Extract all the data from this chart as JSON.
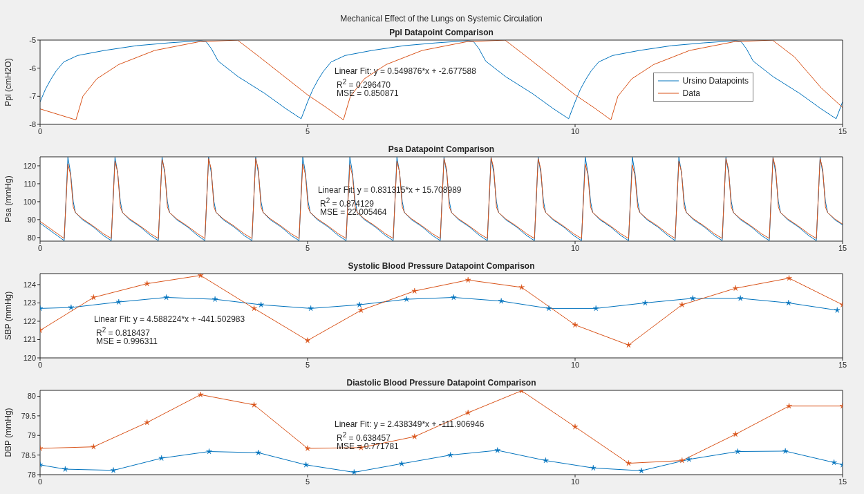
{
  "chart_data": [
    {
      "type": "line",
      "title": "Mechanical Effect of the Lungs on Systemic Circulation",
      "subtitle": "Ppl Datapoint Comparison",
      "ylabel": "Ppl (cmH2O)",
      "xlim": [
        0,
        15
      ],
      "xticks": [
        0,
        5,
        10,
        15
      ],
      "ylim": [
        -8,
        -5
      ],
      "yticks": [
        -8,
        -7,
        -6,
        -5
      ],
      "legend": "right",
      "series": [
        {
          "name": "Ursino Datapoints",
          "color": "#0072bd",
          "x": [
            0,
            0.1,
            0.2,
            0.3,
            0.44,
            0.7,
            1.2,
            1.8,
            2.4,
            3,
            3.1,
            3.2,
            3.33,
            3.7,
            4.2,
            4.6,
            4.88,
            5,
            5.1,
            5.2,
            5.3,
            5.44,
            5.7,
            6.2,
            6.8,
            7.4,
            8,
            8.1,
            8.2,
            8.33,
            8.7,
            9.2,
            9.6,
            9.88,
            10,
            10.1,
            10.2,
            10.3,
            10.44,
            10.7,
            11.2,
            11.8,
            12.4,
            13,
            13.1,
            13.2,
            13.33,
            13.7,
            14.2,
            14.6,
            14.88,
            15
          ],
          "values": [
            -7.2,
            -6.75,
            -6.4,
            -6.1,
            -5.78,
            -5.55,
            -5.37,
            -5.2,
            -5.1,
            -5.02,
            -5.05,
            -5.3,
            -5.75,
            -6.3,
            -6.9,
            -7.45,
            -7.8,
            -7.2,
            -6.75,
            -6.4,
            -6.1,
            -5.78,
            -5.55,
            -5.37,
            -5.2,
            -5.1,
            -5.02,
            -5.05,
            -5.3,
            -5.75,
            -6.3,
            -6.9,
            -7.45,
            -7.8,
            -7.2,
            -6.75,
            -6.4,
            -6.1,
            -5.78,
            -5.55,
            -5.37,
            -5.2,
            -5.1,
            -5.02,
            -5.05,
            -5.3,
            -5.75,
            -6.3,
            -6.9,
            -7.45,
            -7.8,
            -7.2
          ]
        },
        {
          "name": "Data",
          "color": "#d95319",
          "x": [
            0,
            0.67,
            0.8,
            1.06,
            1.47,
            2.14,
            2.97,
            3.69,
            4.1,
            4.6,
            5,
            5.35,
            5.67,
            5.8,
            6.06,
            6.47,
            7.14,
            7.97,
            8.69,
            9.1,
            9.6,
            10,
            10.35,
            10.67,
            10.8,
            11.06,
            11.47,
            12.14,
            12.97,
            13.69,
            14.1,
            14.6,
            15
          ],
          "values": [
            -7.45,
            -7.84,
            -7,
            -6.38,
            -5.87,
            -5.37,
            -5.06,
            -5,
            -5.6,
            -6.35,
            -6.95,
            -7.4,
            -7.84,
            -7,
            -6.38,
            -5.87,
            -5.37,
            -5.06,
            -5,
            -5.6,
            -6.35,
            -6.95,
            -7.4,
            -7.84,
            -7,
            -6.38,
            -5.87,
            -5.37,
            -5.06,
            -5,
            -5.6,
            -6.7,
            -7.4
          ]
        }
      ],
      "annotations": [
        "Linear Fit: y = 0.549876*x + -2.677588",
        "R$^{2}$ = 0.296470",
        "MSE = 0.850871"
      ]
    },
    {
      "type": "line",
      "title": "Psa Datapoint Comparison",
      "ylabel": "Psa (mmHg)",
      "xlim": [
        0,
        15
      ],
      "xticks": [
        0,
        5,
        10,
        15
      ],
      "ylim": [
        78,
        125
      ],
      "yticks": [
        80,
        90,
        100,
        110,
        120
      ],
      "x": [
        0,
        0.45,
        0.52,
        0.57,
        0.62,
        0.66,
        0.79,
        0.99,
        1.19,
        1.33,
        1.4,
        1.45,
        1.5,
        1.54,
        1.67,
        1.87,
        2.07,
        2.21,
        2.28,
        2.33,
        2.38,
        2.42,
        2.55,
        2.75,
        2.95,
        3.08,
        3.15,
        3.2,
        3.25,
        3.29,
        3.42,
        3.62,
        3.82,
        3.96,
        4.03,
        4.08,
        4.13,
        4.17,
        4.3,
        4.5,
        4.7,
        4.84,
        4.91,
        4.96,
        5.01,
        5.05,
        5.18,
        5.38,
        5.58,
        5.72,
        5.79,
        5.84,
        5.89,
        5.93,
        6.06,
        6.26,
        6.46,
        6.6,
        6.67,
        6.72,
        6.77,
        6.81,
        6.94,
        7.14,
        7.34,
        7.48,
        7.55,
        7.6,
        7.65,
        7.69,
        7.82,
        8.02,
        8.22,
        8.36,
        8.43,
        8.48,
        8.53,
        8.57,
        8.7,
        8.9,
        9.1,
        9.24,
        9.31,
        9.36,
        9.41,
        9.45,
        9.58,
        9.78,
        9.98,
        10.12,
        10.19,
        10.24,
        10.29,
        10.33,
        10.46,
        10.66,
        10.86,
        11,
        11.07,
        11.12,
        11.17,
        11.21,
        11.34,
        11.54,
        11.74,
        11.87,
        11.94,
        11.99,
        12.04,
        12.08,
        12.21,
        12.41,
        12.61,
        12.75,
        12.82,
        12.87,
        12.92,
        12.96,
        13.09,
        13.29,
        13.49,
        13.63,
        13.7,
        13.75,
        13.8,
        13.84,
        13.97,
        14.17,
        14.37,
        14.51,
        14.58,
        14.63,
        14.68,
        14.72,
        14.85,
        15
      ],
      "series": [
        {
          "color": "#0072bd",
          "values": [
            88,
            78.3,
            124.8,
            116,
            100,
            94,
            90,
            86,
            81,
            78.3,
            124.8,
            116,
            100,
            94,
            90,
            86,
            81,
            78.3,
            124.8,
            116,
            100,
            94,
            90,
            86,
            81,
            78.3,
            124.8,
            116,
            100,
            94,
            90,
            86,
            81,
            78.3,
            124.8,
            116,
            100,
            94,
            90,
            86,
            81,
            78.3,
            124.8,
            116,
            100,
            94,
            90,
            86,
            81,
            78.3,
            124.8,
            116,
            100,
            94,
            90,
            86,
            81,
            78.3,
            124.8,
            116,
            100,
            94,
            90,
            86,
            81,
            78.3,
            124.8,
            116,
            100,
            94,
            90,
            86,
            81,
            78.3,
            124.8,
            116,
            100,
            94,
            90,
            86,
            81,
            78.3,
            124.8,
            116,
            100,
            94,
            90,
            86,
            81,
            78.3,
            124.8,
            116,
            100,
            94,
            90,
            86,
            81,
            78.3,
            124.8,
            116,
            100,
            94,
            90,
            86,
            81,
            78.3,
            124.8,
            116,
            100,
            94,
            90,
            86,
            81,
            78.3,
            124.8,
            116,
            100,
            94,
            90,
            86,
            81,
            78.3,
            124.8,
            116,
            100,
            94,
            90,
            86,
            81,
            78.3,
            124.8,
            116,
            100,
            94,
            90,
            87
          ]
        },
        {
          "color": "#d95319",
          "values": [
            89,
            79.5,
            121,
            115,
            97,
            94,
            90.5,
            86.5,
            82,
            79.5,
            122.5,
            116.5,
            97,
            94,
            90.5,
            86.5,
            82,
            79.5,
            123.5,
            117.5,
            97,
            94,
            90.5,
            86.5,
            82,
            79.5,
            124,
            118,
            97,
            94,
            90.5,
            86.5,
            82,
            79.5,
            124,
            118,
            97,
            94,
            90.5,
            86.5,
            82,
            79.5,
            121,
            115,
            97,
            94,
            90.5,
            86.5,
            82,
            79.5,
            120.5,
            114.5,
            97,
            94,
            90.5,
            86.5,
            82,
            79.5,
            122.5,
            116.5,
            97,
            94,
            90.5,
            86.5,
            82,
            79.5,
            124,
            118,
            97,
            94,
            90.5,
            86.5,
            82,
            79.5,
            124.5,
            118.5,
            97,
            94,
            90.5,
            86.5,
            82,
            79.5,
            124,
            118,
            97,
            94,
            90.5,
            86.5,
            82,
            79.5,
            121,
            115,
            97,
            94,
            90.5,
            86.5,
            82,
            79.5,
            120.5,
            114.5,
            97,
            94,
            90.5,
            86.5,
            82,
            79.5,
            122.5,
            116.5,
            97,
            94,
            90.5,
            86.5,
            82,
            79.5,
            124,
            118,
            97,
            94,
            90.5,
            86.5,
            82,
            79.5,
            124.5,
            118.5,
            97,
            94,
            90.5,
            86.5,
            82,
            79.5,
            124,
            118,
            97,
            94,
            90.5,
            87.5
          ]
        }
      ],
      "annotations": [
        "Linear Fit:  y = 0.831315*x + 15.708989",
        "R$^{2}$ = 0.874129",
        "MSE = 22.005464"
      ]
    },
    {
      "type": "line",
      "title": "Systolic Blood Pressure Datapoint Comparison",
      "ylabel": "SBP (mmHg)",
      "xlim": [
        0,
        15
      ],
      "xticks": [
        0,
        5,
        10,
        15
      ],
      "ylim": [
        120,
        124.6
      ],
      "yticks": [
        120,
        121,
        122,
        123,
        124
      ],
      "marker": "star",
      "series": [
        {
          "color": "#0072bd",
          "x": [
            0,
            0.58,
            1.47,
            2.36,
            3.27,
            4.13,
            5.06,
            5.97,
            6.85,
            7.73,
            8.62,
            9.51,
            10.39,
            11.31,
            12.2,
            13.09,
            13.99,
            14.9
          ],
          "values": [
            122.7,
            122.75,
            123.05,
            123.3,
            123.2,
            122.9,
            122.7,
            122.9,
            123.2,
            123.3,
            123.1,
            122.7,
            122.7,
            123,
            123.25,
            123.25,
            123,
            122.6
          ]
        },
        {
          "color": "#d95319",
          "x": [
            0,
            1,
            2,
            3,
            4,
            5,
            6,
            7,
            8,
            9,
            10,
            11,
            12,
            13,
            14,
            15
          ],
          "values": [
            121.5,
            123.3,
            124.05,
            124.5,
            122.7,
            120.95,
            122.6,
            123.65,
            124.25,
            123.85,
            121.8,
            120.7,
            122.9,
            123.8,
            124.35,
            122.9
          ]
        }
      ],
      "annotations": [
        "Linear Fit: y = 4.588224*x + -441.502983",
        "R$^{2}$ = 0.818437",
        "MSE = 0.996311"
      ]
    },
    {
      "type": "line",
      "title": "Diastolic Blood Pressure Datapoint Comparison",
      "ylabel": "DBP (mmHg)",
      "xlim": [
        0,
        15
      ],
      "xticks": [
        0,
        5,
        10,
        15
      ],
      "ylim": [
        78,
        80.15
      ],
      "yticks": [
        78,
        78.5,
        79,
        79.5,
        80
      ],
      "marker": "star",
      "series": [
        {
          "color": "#0072bd",
          "x": [
            0,
            0.47,
            1.37,
            2.27,
            3.16,
            4.08,
            4.97,
            5.87,
            6.76,
            7.67,
            8.55,
            9.45,
            10.34,
            11.24,
            12.13,
            13.04,
            13.93,
            14.84,
            15
          ],
          "values": [
            78.25,
            78.14,
            78.11,
            78.42,
            78.59,
            78.56,
            78.25,
            78.06,
            78.28,
            78.5,
            78.62,
            78.36,
            78.17,
            78.1,
            78.39,
            78.59,
            78.6,
            78.31,
            78.25
          ]
        },
        {
          "color": "#d95319",
          "x": [
            0,
            1,
            2,
            3,
            4,
            5,
            6,
            7,
            8,
            9,
            10,
            11,
            12,
            13,
            14,
            15
          ],
          "values": [
            78.67,
            78.71,
            79.33,
            80.04,
            79.78,
            78.67,
            78.69,
            78.97,
            79.58,
            80.14,
            79.22,
            78.29,
            78.36,
            79.03,
            79.75,
            79.75
          ]
        }
      ],
      "annotations": [
        "Linear Fit: y = 2.438349*x + -111.906946",
        "R$^{2}$ = 0.638457",
        "MSE = 0.771781"
      ]
    }
  ]
}
